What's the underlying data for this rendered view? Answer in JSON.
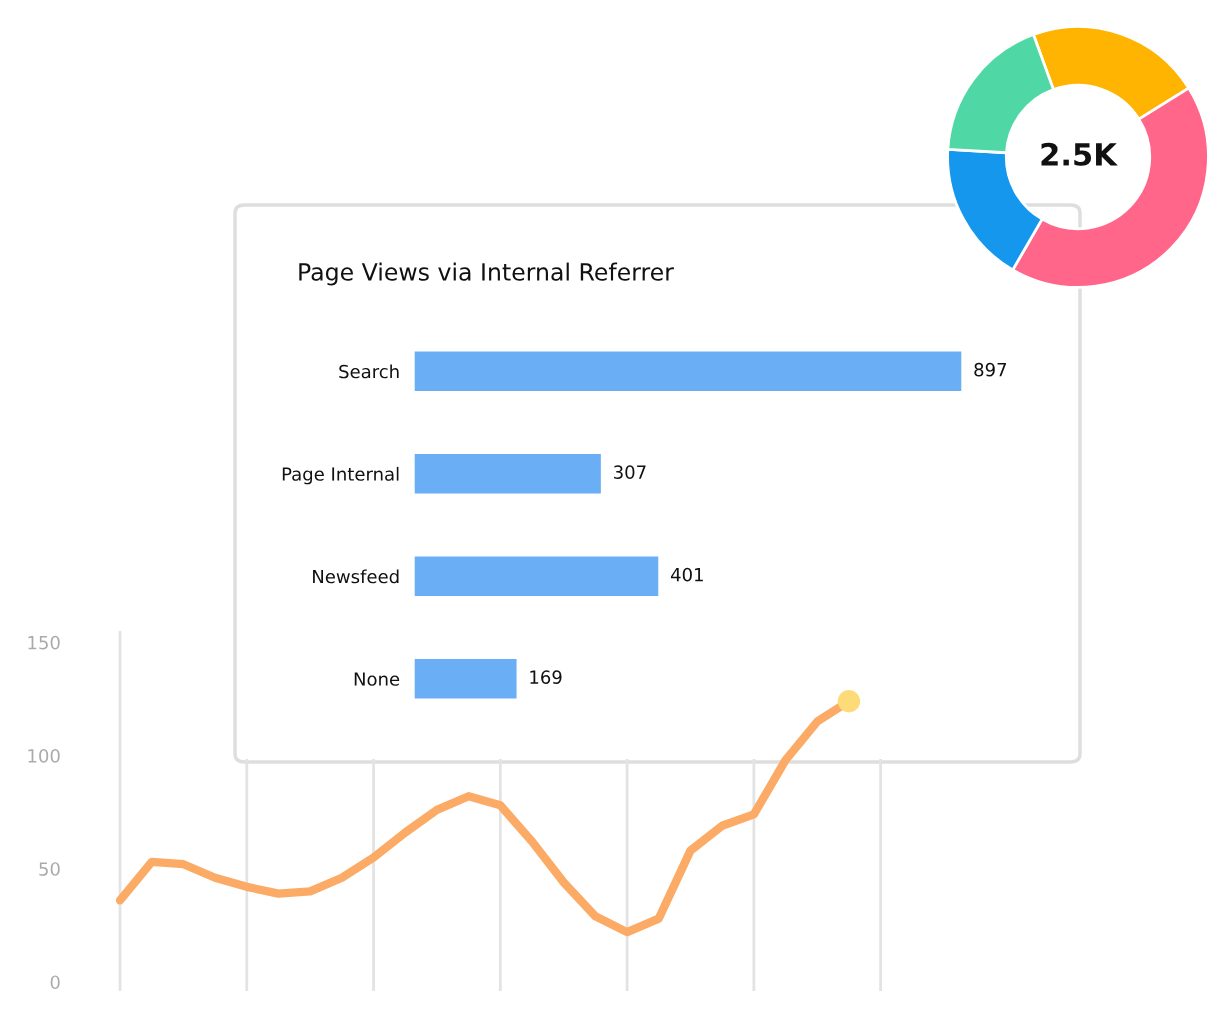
{
  "chart_data": [
    {
      "type": "donut",
      "categories": [
        null,
        null,
        null,
        null
      ],
      "values": [
        21.7,
        42.2,
        17.6,
        18.5
      ],
      "colors": [
        "#ffb401",
        "#ff668a",
        "#1497ec",
        "#4fd8a5"
      ],
      "annotations": [
        "2.5K"
      ]
    },
    {
      "type": "bar",
      "orientation": "horizontal",
      "title": "Page Views via Internal Referrer",
      "categories": [
        "Search",
        "Page Internal",
        "Newsfeed",
        "None"
      ],
      "values": [
        897,
        307,
        401,
        169
      ],
      "color": "#6aaff5",
      "data_labels": true
    },
    {
      "type": "line",
      "categories": [
        null,
        null,
        null,
        null,
        null,
        null,
        null,
        null,
        null,
        null,
        null,
        null,
        null,
        null,
        null,
        null,
        null,
        null,
        null,
        null,
        null,
        null,
        null,
        null,
        null
      ],
      "ylim": [
        -4,
        155
      ],
      "yticks": [
        0,
        50,
        100,
        150
      ],
      "grid": "x",
      "tick_labels": "y",
      "series": [
        {
          "type": "line",
          "color": "#fbab66",
          "values": [
            36,
            53,
            52,
            46,
            42,
            39,
            40,
            46,
            55,
            66,
            76,
            82,
            78,
            62,
            44,
            29,
            22,
            28,
            58,
            69,
            74,
            98,
            115,
            124,
            null
          ]
        }
      ]
    }
  ]
}
